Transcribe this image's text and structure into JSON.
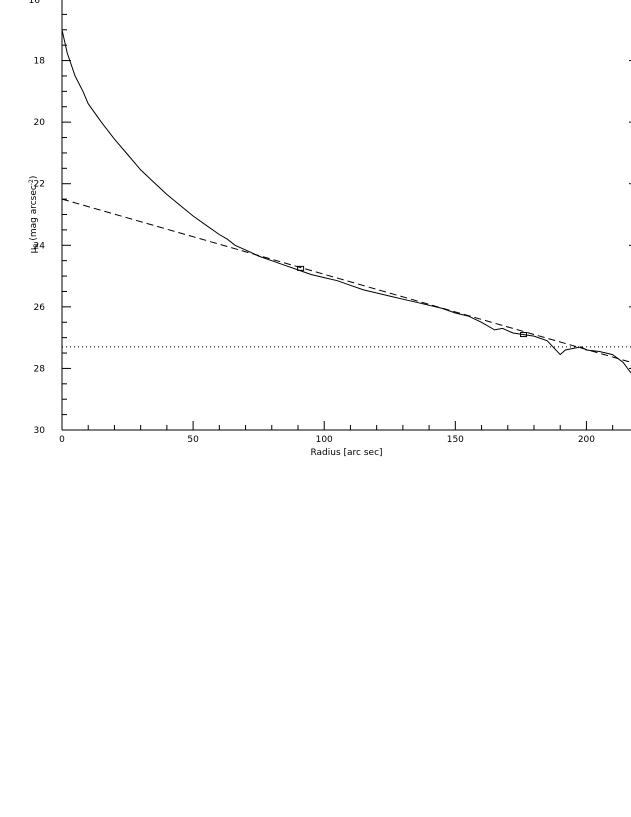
{
  "chart_data": {
    "type": "line",
    "xlabel": "Radius [arc sec]",
    "ylabel_main": "μ",
    "ylabel_sub": "B",
    "ylabel_rest": " (mag arcsec",
    "ylabel_sup": "-2",
    "ylabel_close": ")",
    "xlim": [
      0,
      217
    ],
    "ylim": [
      30,
      16
    ],
    "x_ticks": [
      0,
      50,
      100,
      150,
      200
    ],
    "x_tick_labels": [
      "0",
      "50",
      "100",
      "150",
      "200"
    ],
    "y_ticks": [
      18,
      20,
      22,
      24,
      26,
      28,
      30
    ],
    "y_tick_labels": [
      "18",
      "20",
      "22",
      "24",
      "26",
      "28",
      "30"
    ],
    "top_label": "16",
    "grid": false,
    "legend": "none",
    "series": [
      {
        "style": "solid",
        "x": [
          0,
          2,
          5,
          8,
          10,
          15,
          20,
          25,
          30,
          35,
          40,
          45,
          50,
          55,
          60,
          63,
          66,
          70,
          75,
          80,
          85,
          90,
          95,
          100,
          105,
          110,
          115,
          120,
          125,
          130,
          135,
          140,
          145,
          150,
          155,
          160,
          165,
          168,
          172,
          176,
          180,
          185,
          190,
          192,
          195,
          198,
          200,
          205,
          210,
          214,
          217
        ],
        "y": [
          17.0,
          17.75,
          18.5,
          19.0,
          19.4,
          20.0,
          20.55,
          21.05,
          21.55,
          21.95,
          22.35,
          22.7,
          23.05,
          23.35,
          23.65,
          23.8,
          24.0,
          24.15,
          24.35,
          24.5,
          24.65,
          24.8,
          24.95,
          25.05,
          25.15,
          25.3,
          25.45,
          25.55,
          25.65,
          25.75,
          25.85,
          25.95,
          26.05,
          26.2,
          26.3,
          26.5,
          26.75,
          26.7,
          26.85,
          26.9,
          26.95,
          27.1,
          27.55,
          27.4,
          27.35,
          27.3,
          27.4,
          27.45,
          27.55,
          27.8,
          28.15
        ]
      },
      {
        "style": "dashed",
        "x": [
          0,
          217
        ],
        "y": [
          22.5,
          27.8
        ]
      },
      {
        "style": "dotted",
        "x": [
          0,
          217
        ],
        "y": [
          27.3,
          27.3
        ]
      }
    ],
    "markers": [
      {
        "x": 91,
        "y": 24.75
      },
      {
        "x": 176,
        "y": 26.9
      }
    ]
  }
}
